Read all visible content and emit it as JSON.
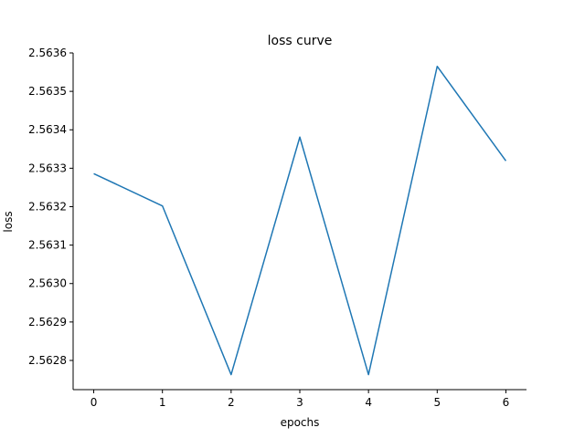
{
  "chart_data": {
    "type": "line",
    "title": "loss curve",
    "xlabel": "epochs",
    "ylabel": "loss",
    "x": [
      0,
      1,
      2,
      3,
      4,
      5,
      6
    ],
    "series": [
      {
        "values": [
          2.563286,
          2.563202,
          2.562763,
          2.563381,
          2.562763,
          2.563565,
          2.563319
        ]
      }
    ],
    "xticks": [
      0,
      1,
      2,
      3,
      4,
      5,
      6
    ],
    "yticks": [
      2.5628,
      2.5629,
      2.563,
      2.5631,
      2.5632,
      2.5633,
      2.5634,
      2.5635,
      2.5636
    ],
    "ytick_labels": [
      "2.5628",
      "2.5629",
      "2.5630",
      "2.5631",
      "2.5632",
      "2.5633",
      "2.5634",
      "2.5635",
      "2.5636"
    ],
    "xlim": [
      -0.3,
      6.3
    ],
    "ylim": [
      2.562724,
      2.5636
    ],
    "grid": false,
    "line_color": "#1f77b4",
    "axis_color": "#000000"
  }
}
